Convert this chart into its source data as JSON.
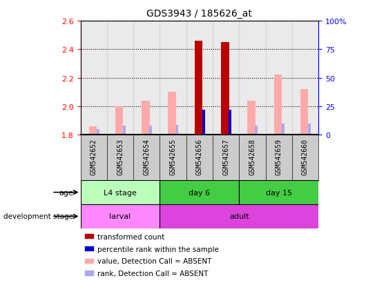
{
  "title": "GDS3943 / 185626_at",
  "samples": [
    "GSM542652",
    "GSM542653",
    "GSM542654",
    "GSM542655",
    "GSM542656",
    "GSM542657",
    "GSM542658",
    "GSM542659",
    "GSM542660"
  ],
  "value_absent": [
    1.86,
    2.0,
    2.04,
    2.1,
    null,
    null,
    2.04,
    2.22,
    2.12
  ],
  "rank_absent_pct": [
    5.0,
    8.0,
    8.0,
    8.5,
    null,
    null,
    8.0,
    10.0,
    9.5
  ],
  "transformed_count": [
    null,
    null,
    null,
    null,
    2.46,
    2.45,
    null,
    null,
    null
  ],
  "percentile_rank_pct": [
    null,
    null,
    null,
    null,
    22.0,
    22.0,
    null,
    null,
    null
  ],
  "ylim_left": [
    1.8,
    2.6
  ],
  "ylim_right": [
    0,
    100
  ],
  "yticks_left": [
    1.8,
    2.0,
    2.2,
    2.4,
    2.6
  ],
  "yticks_right": [
    0,
    25,
    50,
    75,
    100
  ],
  "ytick_labels_right": [
    "0",
    "25",
    "50",
    "75",
    "100%"
  ],
  "age_groups": [
    {
      "label": "L4 stage",
      "start": 0,
      "end": 3,
      "color": "#bbffbb"
    },
    {
      "label": "day 6",
      "start": 3,
      "end": 6,
      "color": "#44cc44"
    },
    {
      "label": "day 15",
      "start": 6,
      "end": 9,
      "color": "#44cc44"
    }
  ],
  "dev_groups": [
    {
      "label": "larval",
      "start": 0,
      "end": 3,
      "color": "#ff88ff"
    },
    {
      "label": "adult",
      "start": 3,
      "end": 9,
      "color": "#dd44dd"
    }
  ],
  "color_transformed": "#bb0000",
  "color_percentile": "#0000cc",
  "color_absent_val": "#ffaaaa",
  "color_absent_rank": "#aaaaee",
  "baseline": 1.8,
  "background_plot": "#ffffff",
  "background_sample": "#c8c8c8",
  "legend_items": [
    {
      "label": "transformed count",
      "color": "#bb0000"
    },
    {
      "label": "percentile rank within the sample",
      "color": "#0000cc"
    },
    {
      "label": "value, Detection Call = ABSENT",
      "color": "#ffaaaa"
    },
    {
      "label": "rank, Detection Call = ABSENT",
      "color": "#aaaaee"
    }
  ]
}
